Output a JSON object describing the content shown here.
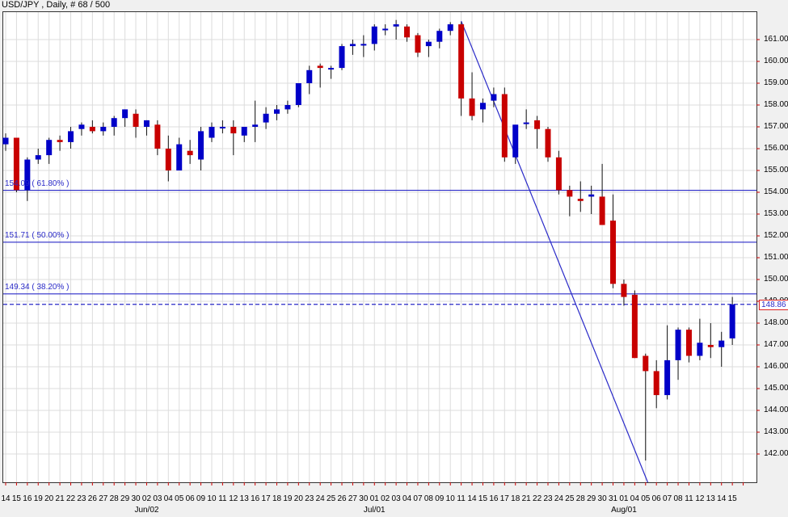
{
  "window": {
    "title": "USD/JPY , Daily, # 68 / 500"
  },
  "colors": {
    "bull": "#0000c8",
    "bear": "#c80000",
    "grid": "#dcdcdc",
    "fib": "#2a2ac8",
    "trend": "#2a2ac8"
  },
  "current_price": {
    "label": "148.86",
    "value": 148.86
  },
  "fib_levels": [
    {
      "label": "154.09 ( 61.80% )",
      "value": 154.09
    },
    {
      "label": "151.71 ( 50.00% )",
      "value": 151.71
    },
    {
      "label": "149.34 ( 38.20% )",
      "value": 149.34
    }
  ],
  "month_labels": [
    {
      "label": "Jun/02",
      "index": 13
    },
    {
      "label": "Jul/01",
      "index": 34
    },
    {
      "label": "Aug/01",
      "index": 57
    }
  ],
  "chart_data": {
    "type": "candlestick",
    "title": "USD/JPY , Daily, # 68 / 500",
    "xlabel": "",
    "ylabel": "",
    "ylim": [
      141.3,
      162.6
    ],
    "y_ticks": [
      142,
      143,
      144,
      145,
      146,
      147,
      148,
      149,
      150,
      151,
      152,
      153,
      154,
      155,
      156,
      157,
      158,
      159,
      160,
      161
    ],
    "y_tick_labels": [
      "142.00",
      "143.00",
      "144.00",
      "145.00",
      "146.00",
      "147.00",
      "148.00",
      "149.00",
      "150.00",
      "151.00",
      "152.00",
      "153.00",
      "154.00",
      "155.00",
      "156.00",
      "157.00",
      "158.00",
      "159.00",
      "160.00",
      "161.00"
    ],
    "grid": true,
    "categories": [
      "14",
      "15",
      "16",
      "19",
      "20",
      "21",
      "22",
      "23",
      "26",
      "27",
      "28",
      "29",
      "30",
      "02",
      "03",
      "04",
      "05",
      "06",
      "09",
      "10",
      "11",
      "12",
      "13",
      "16",
      "17",
      "18",
      "19",
      "20",
      "23",
      "24",
      "25",
      "26",
      "27",
      "30",
      "01",
      "02",
      "03",
      "04",
      "07",
      "08",
      "09",
      "10",
      "11",
      "14",
      "15",
      "16",
      "17",
      "18",
      "21",
      "22",
      "23",
      "24",
      "25",
      "28",
      "29",
      "30",
      "31",
      "01",
      "04",
      "05",
      "06",
      "07",
      "08",
      "11",
      "12",
      "13",
      "14",
      "15"
    ],
    "candles": [
      {
        "o": 156.2,
        "h": 156.7,
        "l": 155.9,
        "c": 156.5
      },
      {
        "o": 156.5,
        "h": 156.5,
        "l": 154.0,
        "c": 154.1
      },
      {
        "o": 154.1,
        "h": 155.6,
        "l": 153.6,
        "c": 155.5
      },
      {
        "o": 155.5,
        "h": 156.0,
        "l": 155.3,
        "c": 155.7
      },
      {
        "o": 155.7,
        "h": 156.5,
        "l": 155.3,
        "c": 156.4
      },
      {
        "o": 156.4,
        "h": 156.6,
        "l": 155.9,
        "c": 156.3
      },
      {
        "o": 156.3,
        "h": 157.0,
        "l": 156.0,
        "c": 156.8
      },
      {
        "o": 156.9,
        "h": 157.2,
        "l": 156.6,
        "c": 157.1
      },
      {
        "o": 157.0,
        "h": 157.3,
        "l": 156.7,
        "c": 156.8
      },
      {
        "o": 156.8,
        "h": 157.2,
        "l": 156.6,
        "c": 157.0
      },
      {
        "o": 157.0,
        "h": 157.5,
        "l": 156.6,
        "c": 157.4
      },
      {
        "o": 157.4,
        "h": 157.8,
        "l": 157.0,
        "c": 157.8
      },
      {
        "o": 157.6,
        "h": 157.8,
        "l": 156.5,
        "c": 157.0
      },
      {
        "o": 157.0,
        "h": 157.3,
        "l": 156.6,
        "c": 157.3
      },
      {
        "o": 157.1,
        "h": 157.3,
        "l": 155.7,
        "c": 156.0
      },
      {
        "o": 156.0,
        "h": 156.6,
        "l": 154.5,
        "c": 155.0
      },
      {
        "o": 155.0,
        "h": 156.5,
        "l": 155.0,
        "c": 156.2
      },
      {
        "o": 155.9,
        "h": 156.4,
        "l": 155.3,
        "c": 155.7
      },
      {
        "o": 155.5,
        "h": 157.0,
        "l": 155.0,
        "c": 156.8
      },
      {
        "o": 156.5,
        "h": 157.2,
        "l": 156.3,
        "c": 157.0
      },
      {
        "o": 157.0,
        "h": 157.3,
        "l": 156.7,
        "c": 157.0
      },
      {
        "o": 157.0,
        "h": 157.3,
        "l": 155.7,
        "c": 156.7
      },
      {
        "o": 156.6,
        "h": 157.0,
        "l": 156.3,
        "c": 157.0
      },
      {
        "o": 157.0,
        "h": 158.2,
        "l": 156.3,
        "c": 157.1
      },
      {
        "o": 157.2,
        "h": 157.9,
        "l": 156.9,
        "c": 157.6
      },
      {
        "o": 157.6,
        "h": 158.0,
        "l": 157.3,
        "c": 157.8
      },
      {
        "o": 157.8,
        "h": 158.2,
        "l": 157.6,
        "c": 158.0
      },
      {
        "o": 158.0,
        "h": 159.0,
        "l": 157.9,
        "c": 159.0
      },
      {
        "o": 159.0,
        "h": 159.8,
        "l": 158.5,
        "c": 159.6
      },
      {
        "o": 159.8,
        "h": 159.9,
        "l": 158.8,
        "c": 159.7
      },
      {
        "o": 159.7,
        "h": 159.8,
        "l": 159.2,
        "c": 159.7
      },
      {
        "o": 159.7,
        "h": 160.8,
        "l": 159.6,
        "c": 160.7
      },
      {
        "o": 160.7,
        "h": 161.0,
        "l": 160.3,
        "c": 160.8
      },
      {
        "o": 160.8,
        "h": 161.2,
        "l": 160.2,
        "c": 160.8
      },
      {
        "o": 160.8,
        "h": 161.7,
        "l": 160.5,
        "c": 161.6
      },
      {
        "o": 161.5,
        "h": 161.7,
        "l": 161.2,
        "c": 161.5
      },
      {
        "o": 161.6,
        "h": 161.9,
        "l": 161.0,
        "c": 161.7
      },
      {
        "o": 161.6,
        "h": 161.7,
        "l": 160.9,
        "c": 161.1
      },
      {
        "o": 161.2,
        "h": 161.3,
        "l": 160.2,
        "c": 160.4
      },
      {
        "o": 160.7,
        "h": 161.0,
        "l": 160.2,
        "c": 160.9
      },
      {
        "o": 160.9,
        "h": 161.5,
        "l": 160.6,
        "c": 161.4
      },
      {
        "o": 161.4,
        "h": 161.8,
        "l": 161.2,
        "c": 161.7
      },
      {
        "o": 161.7,
        "h": 161.8,
        "l": 157.5,
        "c": 158.3
      },
      {
        "o": 158.3,
        "h": 159.5,
        "l": 157.3,
        "c": 157.5
      },
      {
        "o": 157.8,
        "h": 158.3,
        "l": 157.2,
        "c": 158.1
      },
      {
        "o": 158.2,
        "h": 158.8,
        "l": 157.9,
        "c": 158.5
      },
      {
        "o": 158.5,
        "h": 158.8,
        "l": 155.4,
        "c": 155.6
      },
      {
        "o": 155.6,
        "h": 157.0,
        "l": 155.3,
        "c": 157.1
      },
      {
        "o": 157.2,
        "h": 157.8,
        "l": 156.9,
        "c": 157.2
      },
      {
        "o": 157.3,
        "h": 157.5,
        "l": 156.0,
        "c": 156.9
      },
      {
        "o": 156.9,
        "h": 157.0,
        "l": 155.4,
        "c": 155.6
      },
      {
        "o": 155.6,
        "h": 155.9,
        "l": 153.9,
        "c": 154.1
      },
      {
        "o": 154.1,
        "h": 154.3,
        "l": 152.9,
        "c": 153.8
      },
      {
        "o": 153.7,
        "h": 154.5,
        "l": 153.1,
        "c": 153.6
      },
      {
        "o": 153.8,
        "h": 154.3,
        "l": 153.0,
        "c": 153.9
      },
      {
        "o": 153.8,
        "h": 155.3,
        "l": 152.5,
        "c": 152.5
      },
      {
        "o": 152.7,
        "h": 153.9,
        "l": 149.6,
        "c": 149.8
      },
      {
        "o": 149.8,
        "h": 150.0,
        "l": 148.8,
        "c": 149.2
      },
      {
        "o": 149.3,
        "h": 149.5,
        "l": 146.4,
        "c": 146.4
      },
      {
        "o": 146.5,
        "h": 146.6,
        "l": 141.7,
        "c": 145.8
      },
      {
        "o": 145.8,
        "h": 146.3,
        "l": 144.1,
        "c": 144.7
      },
      {
        "o": 144.7,
        "h": 147.9,
        "l": 144.5,
        "c": 146.3
      },
      {
        "o": 146.3,
        "h": 147.8,
        "l": 145.4,
        "c": 147.7
      },
      {
        "o": 147.7,
        "h": 147.8,
        "l": 146.2,
        "c": 146.5
      },
      {
        "o": 146.5,
        "h": 148.2,
        "l": 146.3,
        "c": 147.1
      },
      {
        "o": 147.0,
        "h": 148.0,
        "l": 146.4,
        "c": 146.9
      },
      {
        "o": 146.9,
        "h": 147.6,
        "l": 146.0,
        "c": 147.2
      },
      {
        "o": 147.3,
        "h": 149.2,
        "l": 147.0,
        "c": 148.86
      }
    ],
    "annotations": [
      "Fibonacci retracement: 154.09 (61.80%), 151.71 (50.00%), 149.34 (38.20%)",
      "Trend line from Jul/10 high ~161.9 to Aug/05 low ~141.7",
      "Current price marker 148.86 (dashed)"
    ]
  }
}
